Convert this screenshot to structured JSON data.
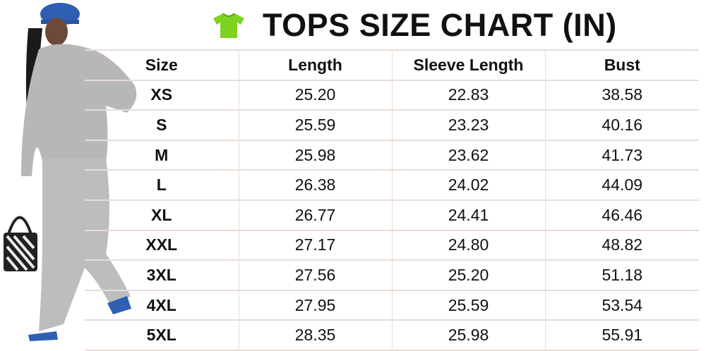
{
  "title": "TOPS SIZE CHART (IN)",
  "icon": "t-shirt-icon",
  "icon_color": "#7ed321",
  "table": {
    "headers": [
      "Size",
      "Length",
      "Sleeve Length",
      "Bust"
    ],
    "rows": [
      [
        "XS",
        "25.20",
        "22.83",
        "38.58"
      ],
      [
        "S",
        "25.59",
        "23.23",
        "40.16"
      ],
      [
        "M",
        "25.98",
        "23.62",
        "41.73"
      ],
      [
        "L",
        "26.38",
        "24.02",
        "44.09"
      ],
      [
        "XL",
        "26.77",
        "24.41",
        "46.46"
      ],
      [
        "XXL",
        "27.17",
        "24.80",
        "48.82"
      ],
      [
        "3XL",
        "27.56",
        "25.20",
        "51.18"
      ],
      [
        "4XL",
        "27.95",
        "25.59",
        "53.54"
      ],
      [
        "5XL",
        "28.35",
        "25.98",
        "55.91"
      ]
    ]
  }
}
